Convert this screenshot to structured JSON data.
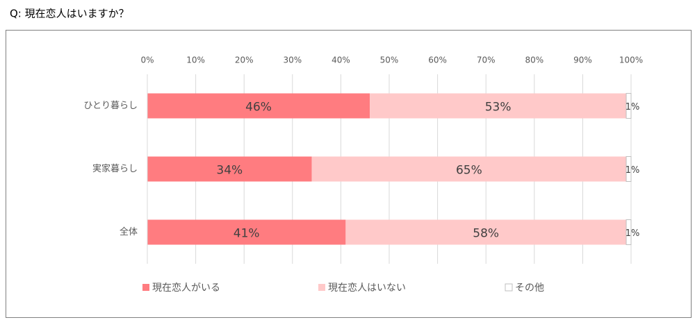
{
  "chart_data": {
    "type": "stacked-bar-horizontal",
    "title": "Q: 現在恋人はいますか？",
    "categories": [
      "ひとり暮らし",
      "実家暮らし",
      "全体"
    ],
    "series": [
      {
        "name": "現在恋人がいる",
        "color": "#ff7c80",
        "values": [
          46,
          34,
          41
        ],
        "value_labels": [
          "46%",
          "34%",
          "41%"
        ]
      },
      {
        "name": "現在恋人はいない",
        "color": "#ffc9c9",
        "values": [
          53,
          65,
          58
        ],
        "value_labels": [
          "53%",
          "65%",
          "58%"
        ]
      },
      {
        "name": "その他",
        "color": "#ffffff",
        "values": [
          1,
          1,
          1
        ],
        "value_labels": [
          "1%",
          "1%",
          "1%"
        ]
      }
    ],
    "xlim": [
      0,
      100
    ],
    "xticks": [
      {
        "value": 0,
        "label": "0%"
      },
      {
        "value": 10,
        "label": "10%"
      },
      {
        "value": 20,
        "label": "20%"
      },
      {
        "value": 30,
        "label": "30%"
      },
      {
        "value": 40,
        "label": "40%"
      },
      {
        "value": 50,
        "label": "50%"
      },
      {
        "value": 60,
        "label": "60%"
      },
      {
        "value": 70,
        "label": "70%"
      },
      {
        "value": 80,
        "label": "80%"
      },
      {
        "value": 90,
        "label": "90%"
      },
      {
        "value": 100,
        "label": "100%"
      }
    ],
    "grid": true,
    "legend": "bottom"
  }
}
